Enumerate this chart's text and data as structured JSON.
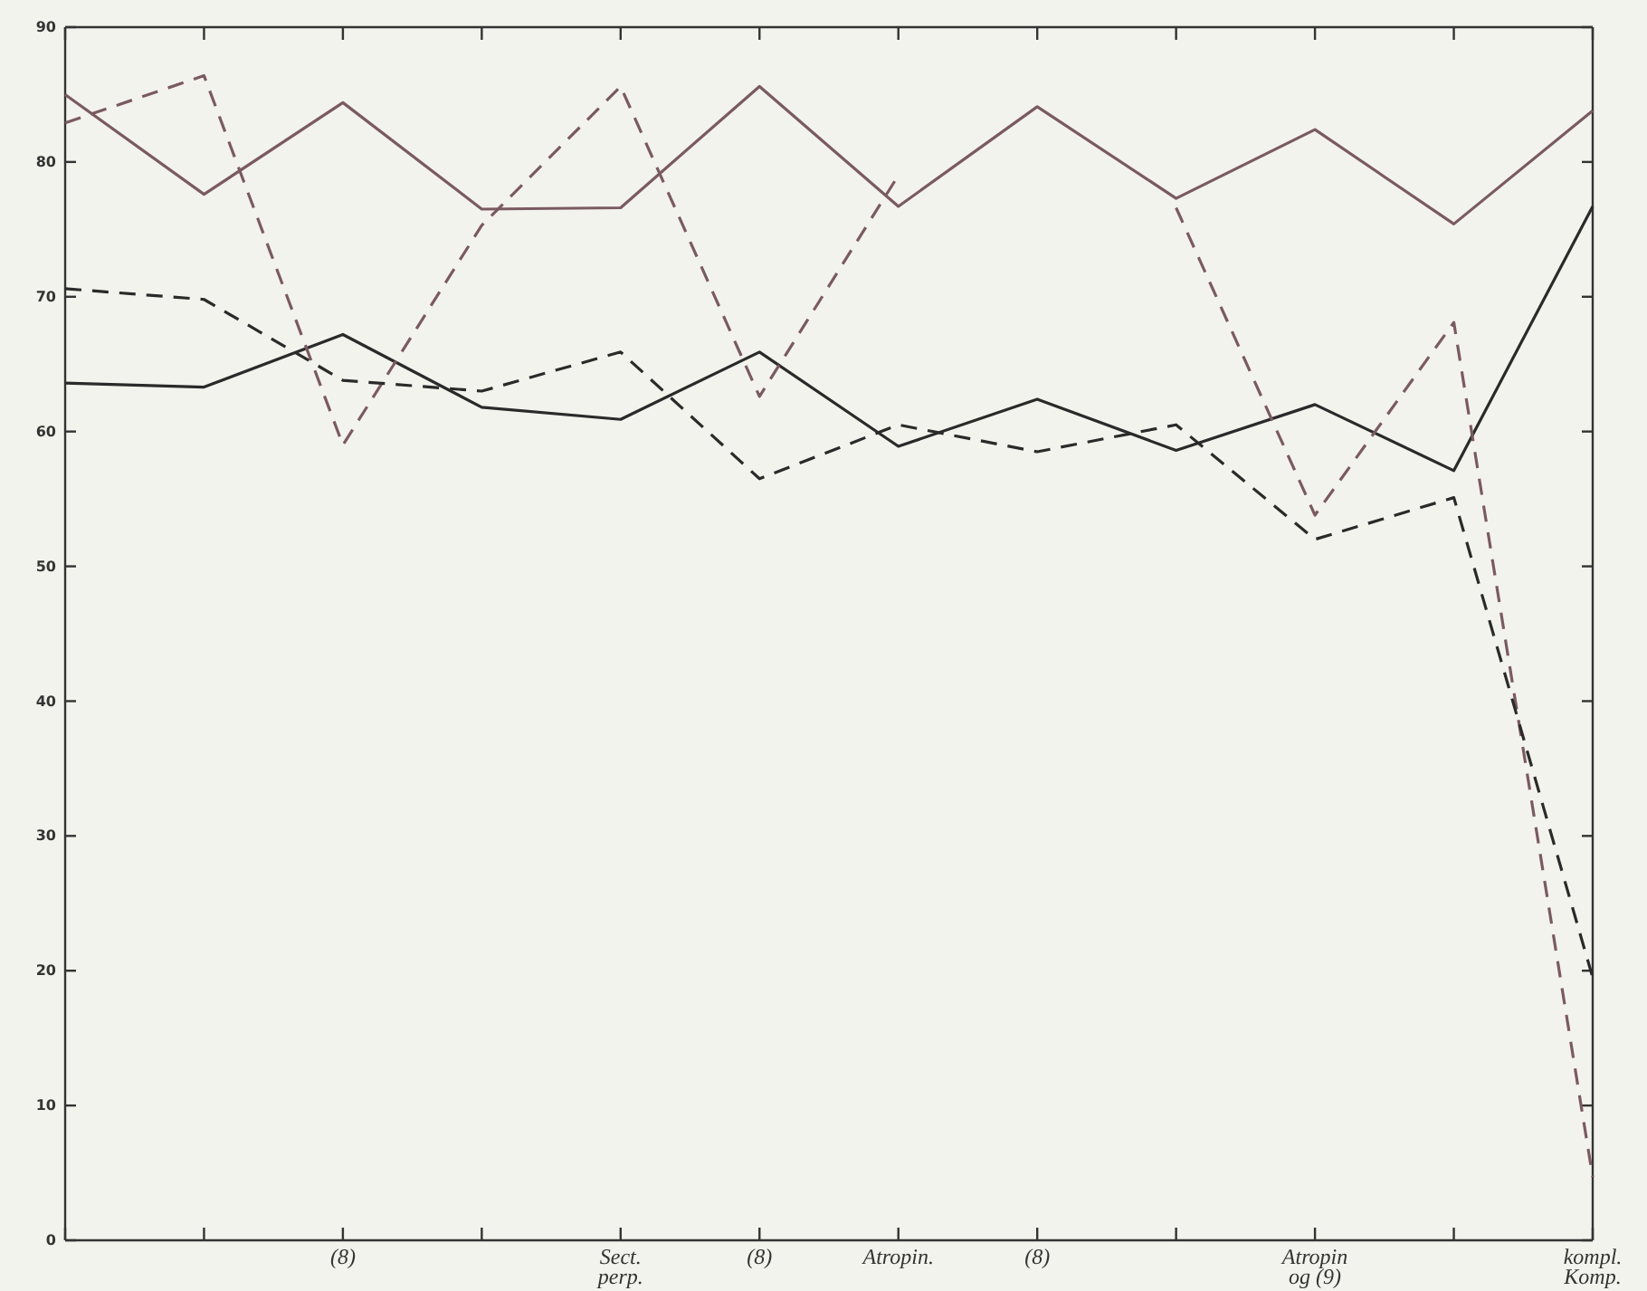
{
  "chart_data": {
    "type": "line",
    "categories": [
      null,
      null,
      "(8)",
      null,
      "Sect.\nperp.",
      "(8)",
      "Atropin.",
      "(8)",
      null,
      "Atropin\nog (9)",
      null,
      "kompl.\nKomp."
    ],
    "ylim": [
      0,
      90
    ],
    "yticks": [
      0,
      10,
      20,
      30,
      40,
      50,
      60,
      70,
      80,
      90
    ],
    "grid": false,
    "marker": "none",
    "tick_labels": "xy",
    "series": [
      {
        "color": "#7a5a62",
        "line_style": "solid",
        "values": [
          85.0,
          77.6,
          84.4,
          76.5,
          76.6,
          85.6,
          76.7,
          84.1,
          77.3,
          82.4,
          75.4,
          83.8
        ]
      },
      {
        "color": "#2a2a2a",
        "line_style": "solid",
        "values": [
          63.6,
          63.3,
          67.2,
          61.8,
          60.9,
          65.9,
          58.9,
          62.4,
          58.6,
          62.0,
          57.1,
          76.7
        ]
      },
      {
        "color": "#7a5a62",
        "line_style": "dashed",
        "values": [
          82.9,
          86.4,
          59.0,
          75.3,
          85.6,
          62.6,
          79.0,
          null,
          76.6,
          53.8,
          68.1,
          4.7
        ]
      },
      {
        "color": "#2a2a2a",
        "line_style": "dashed",
        "values": [
          70.6,
          69.8,
          63.8,
          63.0,
          65.9,
          56.5,
          60.5,
          58.5,
          60.5,
          52.0,
          55.1,
          19.5
        ]
      }
    ]
  }
}
